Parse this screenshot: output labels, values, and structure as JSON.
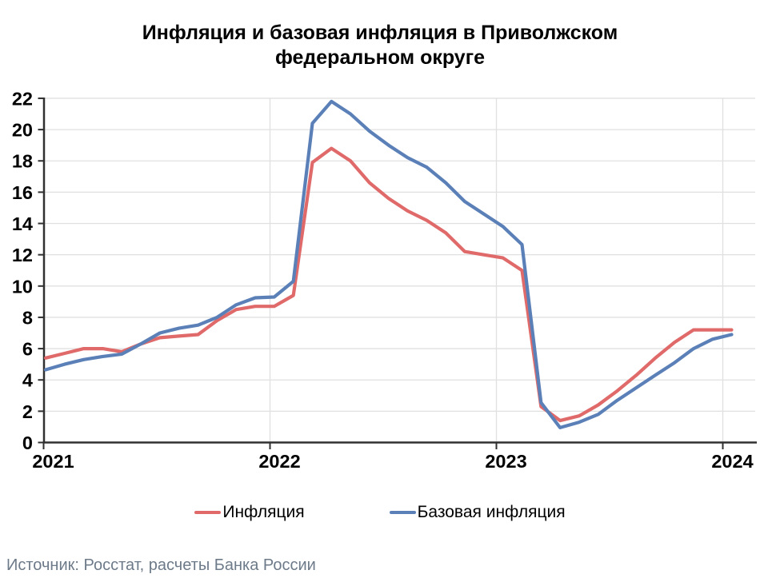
{
  "title": "Инфляция и базовая инфляция в Приволжском федеральном округе",
  "source_note": "Источник: Росстат, расчеты Банка России",
  "legend": [
    {
      "label": "Инфляция",
      "color": "#e06a6a"
    },
    {
      "label": "Базовая инфляция",
      "color": "#5b80b8"
    }
  ],
  "colors": {
    "inflation_line": "#e06a6a",
    "core_inflation_line": "#5b80b8",
    "gridline": "#e0e0e0",
    "axis": "#303030",
    "source_text": "#6d7a89"
  },
  "chart_data": {
    "type": "line",
    "title": "Инфляция и базовая инфляция в Приволжском федеральном округе",
    "xlabel": "",
    "ylabel": "",
    "ylim": [
      0,
      22
    ],
    "ytick_step": 2,
    "y_tick_labels": [
      "0",
      "2",
      "4",
      "6",
      "8",
      "10",
      "12",
      "14",
      "16",
      "18",
      "20",
      "22"
    ],
    "x_tick_labels": [
      "2021",
      "2022",
      "2023",
      "2024"
    ],
    "grid": true,
    "legend_position": "bottom",
    "x": [
      "2021-01",
      "2021-02",
      "2021-03",
      "2021-04",
      "2021-05",
      "2021-06",
      "2021-07",
      "2021-08",
      "2021-09",
      "2021-10",
      "2021-11",
      "2021-12",
      "2022-01",
      "2022-02",
      "2022-03",
      "2022-04",
      "2022-05",
      "2022-06",
      "2022-07",
      "2022-08",
      "2022-09",
      "2022-10",
      "2022-11",
      "2022-12",
      "2023-01",
      "2023-02",
      "2023-03",
      "2023-04",
      "2023-05",
      "2023-06",
      "2023-07",
      "2023-08",
      "2023-09",
      "2023-10",
      "2023-11",
      "2023-12",
      "2024-01"
    ],
    "series": [
      {
        "name": "Инфляция",
        "color": "#e06a6a",
        "values": [
          5.4,
          5.7,
          6.0,
          6.0,
          5.8,
          6.3,
          6.7,
          6.8,
          6.9,
          7.8,
          8.5,
          8.7,
          8.7,
          9.4,
          17.9,
          18.8,
          18.0,
          16.6,
          15.6,
          14.8,
          14.2,
          13.4,
          12.2,
          12.0,
          11.8,
          11.0,
          2.3,
          1.4,
          1.7,
          2.4,
          3.3,
          4.3,
          5.4,
          6.4,
          7.2,
          7.2,
          7.2
        ]
      },
      {
        "name": "Базовая инфляция",
        "color": "#5b80b8",
        "values": [
          4.65,
          5.0,
          5.3,
          5.5,
          5.65,
          6.3,
          7.0,
          7.3,
          7.5,
          8.0,
          8.8,
          9.25,
          9.3,
          10.3,
          20.4,
          21.8,
          21.0,
          19.9,
          19.0,
          18.2,
          17.6,
          16.6,
          15.4,
          14.6,
          13.8,
          12.65,
          2.55,
          0.95,
          1.3,
          1.8,
          2.7,
          3.5,
          4.3,
          5.1,
          6.0,
          6.6,
          6.9
        ]
      }
    ]
  }
}
